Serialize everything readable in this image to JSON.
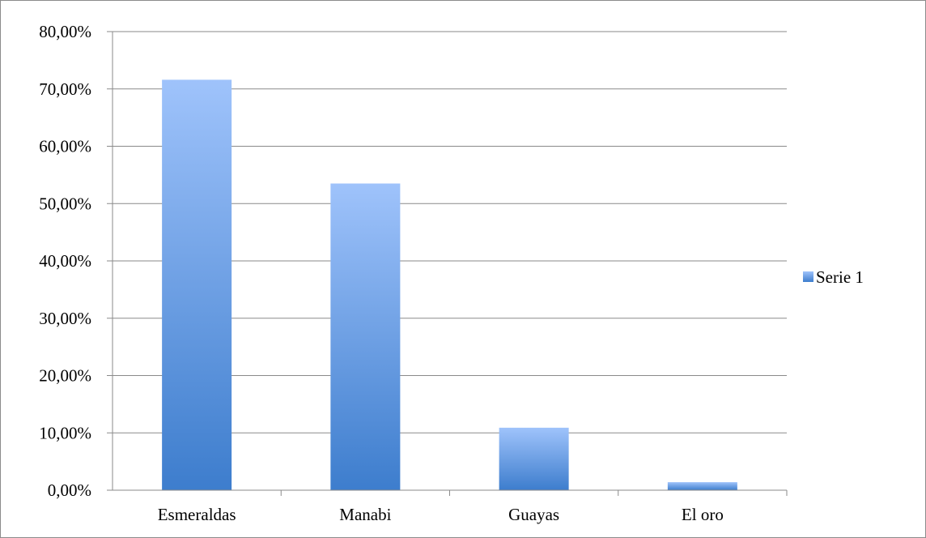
{
  "chart_data": {
    "type": "bar",
    "categories": [
      "Esmeraldas",
      "Manabi",
      "Guayas",
      "El oro"
    ],
    "series": [
      {
        "name": "Serie 1",
        "values": [
          71.6,
          53.5,
          10.9,
          1.4
        ]
      }
    ],
    "y_tick_labels": [
      "0,00%",
      "10,00%",
      "20,00%",
      "30,00%",
      "40,00%",
      "50,00%",
      "60,00%",
      "70,00%",
      "80,00%"
    ],
    "ylim": [
      0,
      80
    ],
    "grid": true,
    "legend_position": "right",
    "colors": {
      "bar_top": "#9fc3fb",
      "bar_bottom": "#3d7dcd",
      "grid": "#8a8a8a",
      "border": "#8c8c8c"
    }
  }
}
